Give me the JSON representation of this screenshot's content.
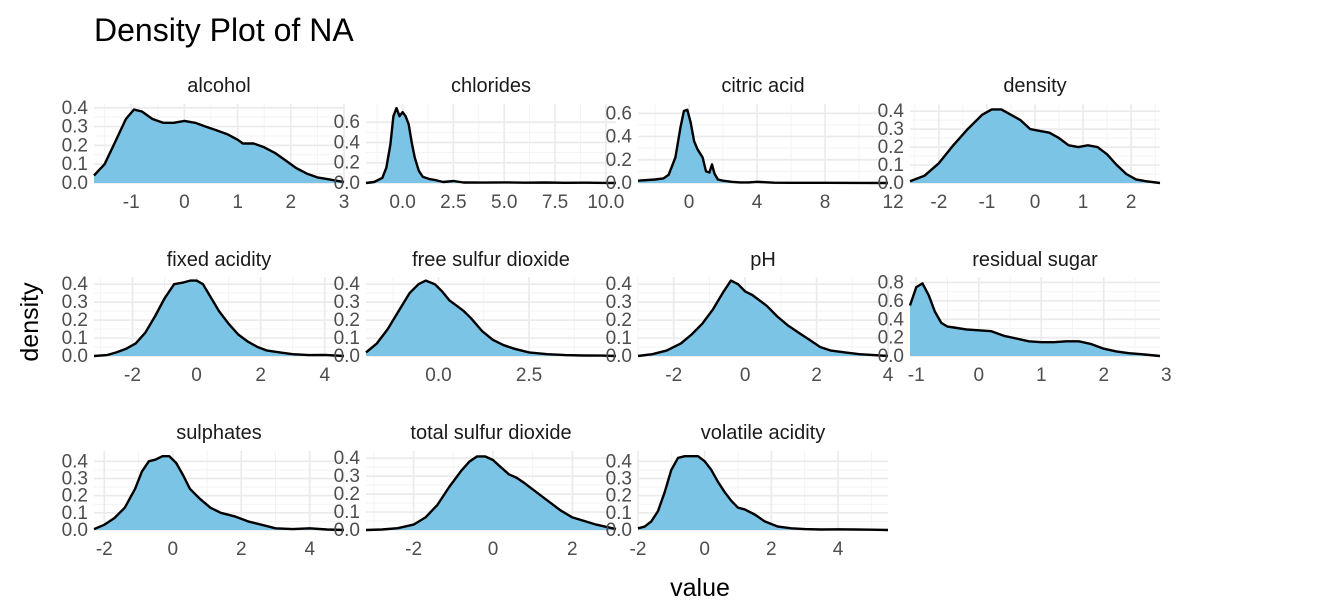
{
  "chart_data": {
    "type": "area",
    "title": "Density Plot of NA",
    "xlabel": "value",
    "ylabel": "density",
    "fill_color": "#7CC4E6",
    "line_color": "#000000",
    "facets": [
      {
        "name": "alcohol",
        "xlim": [
          -1.7,
          3.0
        ],
        "ylim": [
          0,
          0.42
        ],
        "xticks": [
          -1,
          0,
          1,
          2,
          3
        ],
        "xticklabels": [
          "-1",
          "0",
          "1",
          "2",
          "3"
        ],
        "yticks": [
          0,
          0.1,
          0.2,
          0.3,
          0.4
        ],
        "yticklabels": [
          "0.0",
          "0.1",
          "0.2",
          "0.3",
          "0.4"
        ],
        "x": [
          -1.7,
          -1.5,
          -1.3,
          -1.1,
          -0.95,
          -0.8,
          -0.6,
          -0.4,
          -0.2,
          0,
          0.2,
          0.4,
          0.6,
          0.8,
          1.0,
          1.1,
          1.3,
          1.5,
          1.7,
          1.9,
          2.1,
          2.3,
          2.5,
          2.7,
          3.0
        ],
        "y": [
          0.04,
          0.1,
          0.22,
          0.34,
          0.39,
          0.38,
          0.34,
          0.32,
          0.32,
          0.33,
          0.32,
          0.3,
          0.28,
          0.26,
          0.23,
          0.21,
          0.21,
          0.19,
          0.16,
          0.12,
          0.08,
          0.05,
          0.03,
          0.02,
          0.005
        ]
      },
      {
        "name": "chlorides",
        "xlim": [
          -1.8,
          10.5
        ],
        "ylim": [
          0,
          0.78
        ],
        "xticks": [
          0,
          2.5,
          5,
          7.5,
          10
        ],
        "xticklabels": [
          "0.0",
          "2.5",
          "5.0",
          "7.5",
          "10.0"
        ],
        "yticks": [
          0,
          0.2,
          0.4,
          0.6
        ],
        "yticklabels": [
          "0.0",
          "0.2",
          "0.4",
          "0.6"
        ],
        "x": [
          -1.8,
          -1.4,
          -1.0,
          -0.8,
          -0.6,
          -0.45,
          -0.3,
          -0.15,
          0,
          0.15,
          0.3,
          0.45,
          0.6,
          0.8,
          1.0,
          1.3,
          1.6,
          2.0,
          2.5,
          3.0,
          4,
          5,
          6,
          7,
          8,
          9,
          10,
          10.5
        ],
        "y": [
          0.0,
          0.01,
          0.05,
          0.15,
          0.38,
          0.66,
          0.74,
          0.66,
          0.7,
          0.66,
          0.58,
          0.4,
          0.25,
          0.12,
          0.06,
          0.04,
          0.03,
          0.01,
          0.02,
          0.005,
          0.004,
          0.006,
          0.003,
          0.005,
          0.002,
          0.003,
          0.001,
          0.0
        ]
      },
      {
        "name": "citric acid",
        "xlim": [
          -3.0,
          11.7
        ],
        "ylim": [
          0,
          0.68
        ],
        "xticks": [
          0,
          4,
          8,
          12
        ],
        "xticklabels": [
          "0",
          "4",
          "8",
          "12"
        ],
        "yticks": [
          0,
          0.2,
          0.4,
          0.6
        ],
        "yticklabels": [
          "0.0",
          "0.2",
          "0.4",
          "0.6"
        ],
        "x": [
          -3.0,
          -2.0,
          -1.5,
          -1.2,
          -0.8,
          -0.5,
          -0.3,
          -0.1,
          0.1,
          0.3,
          0.5,
          0.8,
          1.0,
          1.2,
          1.35,
          1.5,
          1.7,
          2.0,
          2.5,
          3.0,
          3.5,
          4,
          5,
          6,
          8,
          10,
          11.7
        ],
        "y": [
          0.02,
          0.03,
          0.04,
          0.07,
          0.22,
          0.48,
          0.62,
          0.63,
          0.52,
          0.36,
          0.29,
          0.22,
          0.1,
          0.09,
          0.16,
          0.08,
          0.03,
          0.02,
          0.01,
          0.005,
          0.005,
          0.01,
          0.003,
          0.002,
          0.002,
          0.001,
          0.0
        ]
      },
      {
        "name": "density",
        "xlim": [
          -2.6,
          2.6
        ],
        "ylim": [
          0,
          0.44
        ],
        "xticks": [
          -2,
          -1,
          0,
          1,
          2
        ],
        "xticklabels": [
          "-2",
          "-1",
          "0",
          "1",
          "2"
        ],
        "yticks": [
          0,
          0.1,
          0.2,
          0.3,
          0.4
        ],
        "yticklabels": [
          "0.0",
          "0.1",
          "0.2",
          "0.3",
          "0.4"
        ],
        "x": [
          -2.6,
          -2.3,
          -2.0,
          -1.7,
          -1.4,
          -1.1,
          -0.9,
          -0.7,
          -0.5,
          -0.3,
          -0.1,
          0.1,
          0.3,
          0.5,
          0.7,
          0.9,
          1.1,
          1.3,
          1.5,
          1.7,
          1.9,
          2.1,
          2.3,
          2.6
        ],
        "y": [
          0.01,
          0.04,
          0.11,
          0.21,
          0.3,
          0.38,
          0.41,
          0.41,
          0.38,
          0.35,
          0.3,
          0.29,
          0.28,
          0.25,
          0.21,
          0.2,
          0.21,
          0.2,
          0.16,
          0.1,
          0.05,
          0.02,
          0.01,
          0.0
        ]
      },
      {
        "name": "fixed acidity",
        "xlim": [
          -3.2,
          4.6
        ],
        "ylim": [
          0,
          0.44
        ],
        "xticks": [
          -2,
          0,
          2,
          4
        ],
        "xticklabels": [
          "-2",
          "0",
          "2",
          "4"
        ],
        "yticks": [
          0,
          0.1,
          0.2,
          0.3,
          0.4
        ],
        "yticklabels": [
          "0.0",
          "0.1",
          "0.2",
          "0.3",
          "0.4"
        ],
        "x": [
          -3.2,
          -2.8,
          -2.5,
          -2.2,
          -1.9,
          -1.6,
          -1.3,
          -1.0,
          -0.7,
          -0.4,
          -0.2,
          0,
          0.2,
          0.4,
          0.7,
          1.0,
          1.3,
          1.6,
          1.9,
          2.2,
          2.6,
          3.0,
          3.5,
          4.0,
          4.6
        ],
        "y": [
          0.0,
          0.005,
          0.02,
          0.04,
          0.07,
          0.13,
          0.22,
          0.32,
          0.4,
          0.41,
          0.42,
          0.42,
          0.4,
          0.34,
          0.25,
          0.18,
          0.12,
          0.08,
          0.05,
          0.03,
          0.02,
          0.01,
          0.005,
          0.006,
          0.0
        ]
      },
      {
        "name": "free sulfur dioxide",
        "xlim": [
          -2.0,
          4.9
        ],
        "ylim": [
          0,
          0.44
        ],
        "xticks": [
          0,
          2.5
        ],
        "xticklabels": [
          "0.0",
          "2.5"
        ],
        "yticks": [
          0,
          0.1,
          0.2,
          0.3,
          0.4
        ],
        "yticklabels": [
          "0.0",
          "0.1",
          "0.2",
          "0.3",
          "0.4"
        ],
        "x": [
          -2.0,
          -1.7,
          -1.4,
          -1.1,
          -0.8,
          -0.55,
          -0.35,
          -0.1,
          0.1,
          0.3,
          0.5,
          0.7,
          0.9,
          1.2,
          1.5,
          1.8,
          2.1,
          2.5,
          3.0,
          3.5,
          4.0,
          4.5,
          4.9
        ],
        "y": [
          0.02,
          0.07,
          0.15,
          0.25,
          0.35,
          0.4,
          0.42,
          0.4,
          0.36,
          0.31,
          0.28,
          0.25,
          0.21,
          0.14,
          0.09,
          0.06,
          0.04,
          0.02,
          0.01,
          0.005,
          0.003,
          0.002,
          0.0
        ]
      },
      {
        "name": "pH",
        "xlim": [
          -3.0,
          4.0
        ],
        "ylim": [
          0,
          0.44
        ],
        "xticks": [
          -2,
          0,
          2,
          4
        ],
        "xticklabels": [
          "-2",
          "0",
          "2",
          "4"
        ],
        "yticks": [
          0,
          0.1,
          0.2,
          0.3,
          0.4
        ],
        "yticklabels": [
          "0.0",
          "0.1",
          "0.2",
          "0.3",
          "0.4"
        ],
        "x": [
          -3.0,
          -2.6,
          -2.2,
          -1.8,
          -1.5,
          -1.2,
          -0.9,
          -0.6,
          -0.4,
          -0.2,
          0,
          0.2,
          0.4,
          0.6,
          0.9,
          1.2,
          1.5,
          1.8,
          2.1,
          2.4,
          2.8,
          3.2,
          3.6,
          4.0
        ],
        "y": [
          0.0,
          0.01,
          0.03,
          0.07,
          0.12,
          0.18,
          0.26,
          0.36,
          0.42,
          0.4,
          0.36,
          0.34,
          0.31,
          0.28,
          0.22,
          0.17,
          0.13,
          0.09,
          0.05,
          0.03,
          0.02,
          0.01,
          0.005,
          0.0
        ]
      },
      {
        "name": "residual sugar",
        "xlim": [
          -1.1,
          2.9
        ],
        "ylim": [
          0,
          0.86
        ],
        "xticks": [
          -1,
          0,
          1,
          2,
          3
        ],
        "xticklabels": [
          "-1",
          "0",
          "1",
          "2",
          "3"
        ],
        "yticks": [
          0,
          0.2,
          0.4,
          0.6,
          0.8
        ],
        "yticklabels": [
          "0.0",
          "0.2",
          "0.4",
          "0.6",
          "0.8"
        ],
        "x": [
          -1.1,
          -1.0,
          -0.9,
          -0.8,
          -0.7,
          -0.6,
          -0.5,
          -0.4,
          -0.2,
          0,
          0.2,
          0.4,
          0.6,
          0.8,
          1.0,
          1.2,
          1.4,
          1.6,
          1.8,
          2.0,
          2.2,
          2.4,
          2.6,
          2.9
        ],
        "y": [
          0.55,
          0.75,
          0.79,
          0.66,
          0.48,
          0.36,
          0.32,
          0.31,
          0.29,
          0.28,
          0.27,
          0.22,
          0.19,
          0.16,
          0.15,
          0.15,
          0.16,
          0.16,
          0.13,
          0.08,
          0.05,
          0.03,
          0.02,
          0.0
        ]
      },
      {
        "name": "sulphates",
        "xlim": [
          -2.3,
          5.0
        ],
        "ylim": [
          0,
          0.46
        ],
        "xticks": [
          -2,
          0,
          2,
          4
        ],
        "xticklabels": [
          "-2",
          "0",
          "2",
          "4"
        ],
        "yticks": [
          0,
          0.1,
          0.2,
          0.3,
          0.4
        ],
        "yticklabels": [
          "0.0",
          "0.1",
          "0.2",
          "0.3",
          "0.4"
        ],
        "x": [
          -2.3,
          -2.0,
          -1.7,
          -1.4,
          -1.1,
          -0.9,
          -0.7,
          -0.5,
          -0.3,
          -0.1,
          0.1,
          0.3,
          0.5,
          0.8,
          1.1,
          1.4,
          1.8,
          2.2,
          2.6,
          3.0,
          3.5,
          4.0,
          4.5,
          5.0
        ],
        "y": [
          0.005,
          0.03,
          0.07,
          0.13,
          0.24,
          0.34,
          0.4,
          0.41,
          0.43,
          0.43,
          0.39,
          0.32,
          0.24,
          0.18,
          0.13,
          0.1,
          0.08,
          0.05,
          0.03,
          0.01,
          0.005,
          0.01,
          0.003,
          0.0
        ]
      },
      {
        "name": "total sulfur dioxide",
        "xlim": [
          -3.2,
          3.1
        ],
        "ylim": [
          0,
          0.44
        ],
        "xticks": [
          -2,
          0,
          2
        ],
        "xticklabels": [
          "-2",
          "0",
          "2"
        ],
        "yticks": [
          0,
          0.1,
          0.2,
          0.3,
          0.4
        ],
        "yticklabels": [
          "0.0",
          "0.1",
          "0.2",
          "0.3",
          "0.4"
        ],
        "x": [
          -3.2,
          -2.8,
          -2.4,
          -2.0,
          -1.7,
          -1.4,
          -1.1,
          -0.8,
          -0.6,
          -0.4,
          -0.2,
          0,
          0.2,
          0.4,
          0.6,
          0.8,
          1.1,
          1.4,
          1.7,
          2.0,
          2.3,
          2.6,
          2.9,
          3.1
        ],
        "y": [
          0.0,
          0.003,
          0.01,
          0.03,
          0.07,
          0.14,
          0.24,
          0.33,
          0.38,
          0.41,
          0.41,
          0.39,
          0.35,
          0.31,
          0.29,
          0.26,
          0.21,
          0.16,
          0.11,
          0.07,
          0.05,
          0.03,
          0.015,
          0.005
        ]
      },
      {
        "name": "volatile acidity",
        "xlim": [
          -2.0,
          5.5
        ],
        "ylim": [
          0,
          0.46
        ],
        "xticks": [
          -2,
          0,
          2,
          4
        ],
        "xticklabels": [
          "-2",
          "0",
          "2",
          "4"
        ],
        "yticks": [
          0,
          0.1,
          0.2,
          0.3,
          0.4
        ],
        "yticklabels": [
          "0.0",
          "0.1",
          "0.2",
          "0.3",
          "0.4"
        ],
        "x": [
          -2.0,
          -1.8,
          -1.6,
          -1.4,
          -1.2,
          -1.0,
          -0.8,
          -0.6,
          -0.4,
          -0.2,
          0,
          0.2,
          0.4,
          0.6,
          0.8,
          1.0,
          1.2,
          1.5,
          1.8,
          2.2,
          2.6,
          3.0,
          3.5,
          4.0,
          4.5,
          5.0,
          5.5
        ],
        "y": [
          0.01,
          0.02,
          0.05,
          0.11,
          0.22,
          0.35,
          0.42,
          0.43,
          0.43,
          0.43,
          0.4,
          0.35,
          0.28,
          0.22,
          0.17,
          0.13,
          0.12,
          0.09,
          0.05,
          0.02,
          0.01,
          0.005,
          0.003,
          0.004,
          0.003,
          0.002,
          0.0
        ]
      }
    ]
  }
}
